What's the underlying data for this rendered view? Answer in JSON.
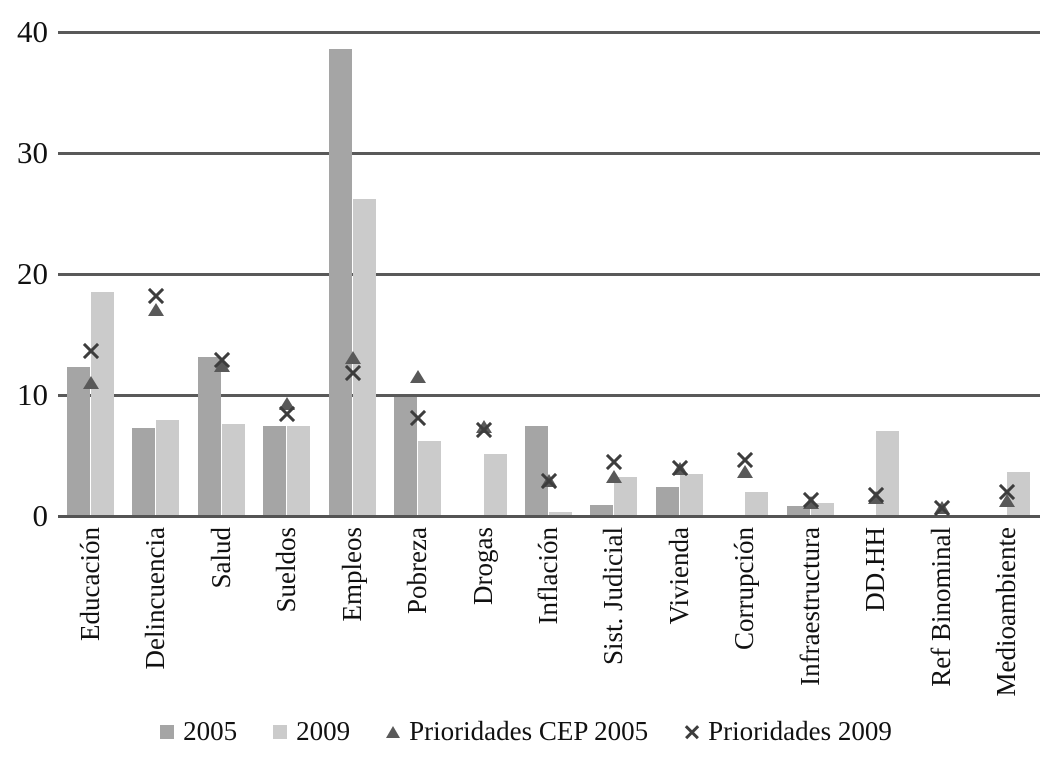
{
  "chart_data": {
    "type": "bar",
    "title": "",
    "xlabel": "",
    "ylabel": "",
    "categories": [
      "Educación",
      "Delincuencia",
      "Salud",
      "Sueldos",
      "Empleos",
      "Pobreza",
      "Drogas",
      "Inflación",
      "Sist. Judicial",
      "Vivienda",
      "Corrupción",
      "Infraestructura",
      "DD.HH",
      "Ref Binominal",
      "Medioambiente"
    ],
    "series": [
      {
        "name": "2005",
        "type": "bar",
        "color": "#a5a5a5",
        "values": [
          12.3,
          7.3,
          13.1,
          7.4,
          38.6,
          9.8,
          0,
          7.4,
          0.9,
          2.4,
          0,
          0.8,
          0,
          0,
          0
        ]
      },
      {
        "name": "2009",
        "type": "bar",
        "color": "#cbcbcb",
        "values": [
          18.5,
          7.9,
          7.6,
          7.4,
          26.2,
          6.2,
          5.1,
          0.3,
          3.2,
          3.5,
          2.0,
          1.1,
          7.0,
          0,
          3.6
        ]
      },
      {
        "name": "Prioridades CEP 2005",
        "type": "triangle",
        "color": "#595959",
        "values": [
          11.0,
          17.1,
          12.4,
          9.3,
          13.1,
          11.5,
          7.4,
          2.9,
          3.3,
          3.9,
          3.7,
          1.1,
          1.5,
          0.7,
          1.3
        ]
      },
      {
        "name": "Prioridades 2009",
        "type": "x",
        "color": "#3d3d3d",
        "values": [
          13.6,
          18.2,
          12.9,
          8.4,
          11.8,
          8.1,
          7.1,
          2.9,
          4.5,
          4.0,
          4.6,
          1.3,
          1.7,
          0.7,
          2.0
        ]
      }
    ],
    "ylim": [
      0,
      40
    ],
    "yticks": [
      0,
      10,
      20,
      30,
      40
    ],
    "grid": true,
    "gridline_color": "#595959",
    "legend_position": "bottom",
    "background_color": "#ffffff"
  }
}
